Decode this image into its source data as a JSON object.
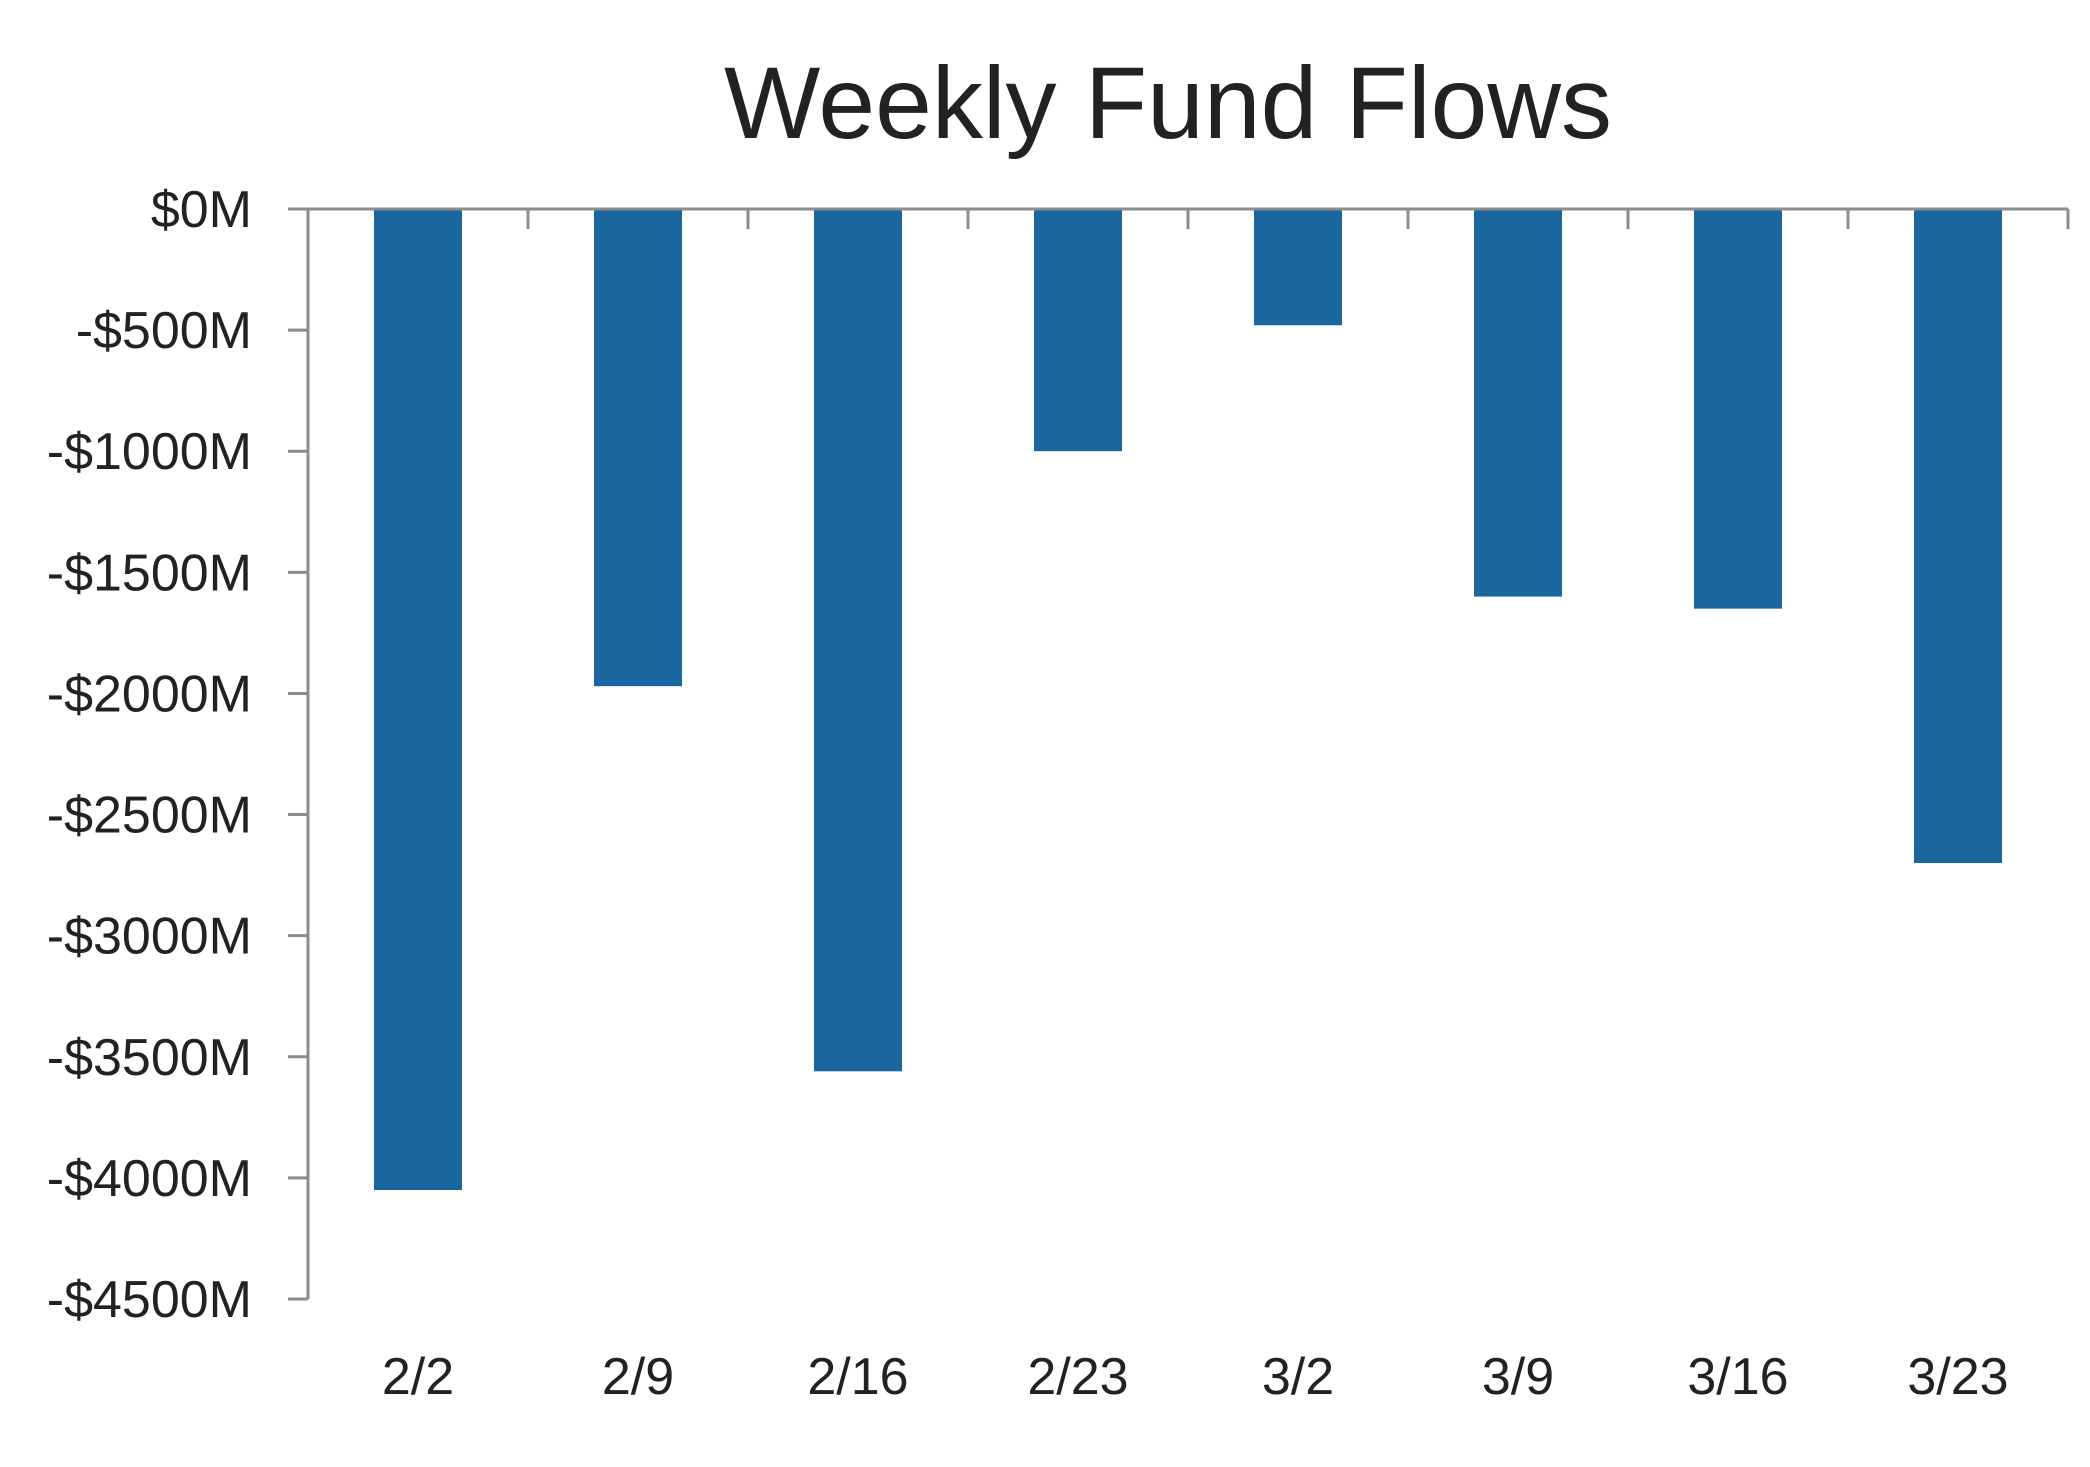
{
  "chart_data": {
    "type": "bar",
    "title": "Weekly Fund Flows",
    "xlabel": "",
    "ylabel": "",
    "categories": [
      "2/2",
      "2/9",
      "2/16",
      "2/23",
      "3/2",
      "3/9",
      "3/16",
      "3/23"
    ],
    "series": [
      {
        "values": [
          -4050,
          -1970,
          -3560,
          -1000,
          -480,
          -1600,
          -1650,
          -2700
        ],
        "color": "#1a67a0"
      }
    ],
    "ylim": [
      -4500,
      0
    ],
    "y_ticks": [
      {
        "value": 0,
        "label": "$0M"
      },
      {
        "value": -500,
        "label": "-$500M"
      },
      {
        "value": -1000,
        "label": "-$1000M"
      },
      {
        "value": -1500,
        "label": "-$1500M"
      },
      {
        "value": -2000,
        "label": "-$2000M"
      },
      {
        "value": -2500,
        "label": "-$2500M"
      },
      {
        "value": -3000,
        "label": "-$3000M"
      },
      {
        "value": -3500,
        "label": "-$3500M"
      },
      {
        "value": -4000,
        "label": "-$4000M"
      },
      {
        "value": -4500,
        "label": "-$4500M"
      }
    ],
    "x_tick_labels_position": "bottom",
    "grid": false,
    "legend": "none",
    "axis_color": "#8c8c8c"
  }
}
